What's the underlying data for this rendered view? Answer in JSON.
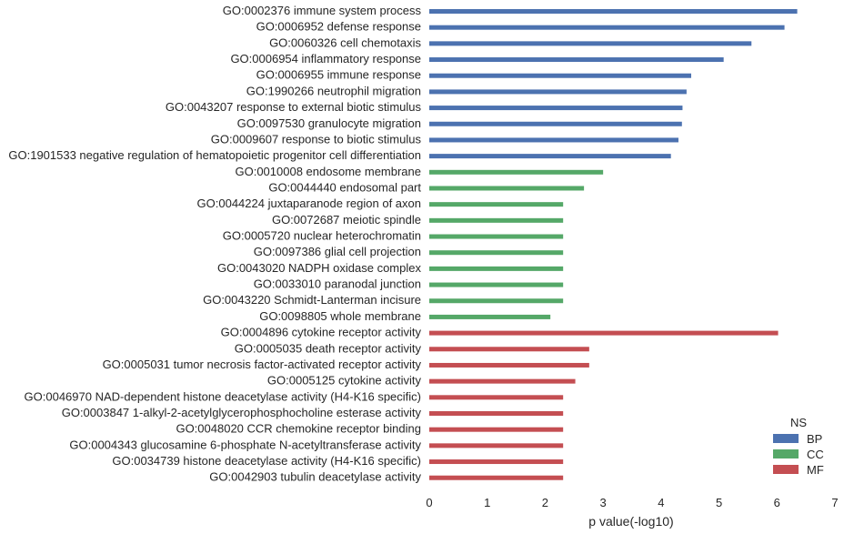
{
  "chart_data": {
    "type": "bar",
    "orientation": "horizontal",
    "xlabel": "p value(-log10)",
    "xlim": [
      0,
      7
    ],
    "xticks": [
      "0",
      "1",
      "2",
      "3",
      "4",
      "5",
      "6",
      "7"
    ],
    "legend": {
      "title": "NS",
      "placement": "bottom-right",
      "entries": [
        {
          "label": "BP",
          "color": "#4c72b0"
        },
        {
          "label": "CC",
          "color": "#55a868"
        },
        {
          "label": "MF",
          "color": "#c44e52"
        }
      ]
    },
    "bars": [
      {
        "label": "GO:0002376 immune system process",
        "value": 6.35,
        "ns": "BP"
      },
      {
        "label": "GO:0006952 defense response",
        "value": 6.13,
        "ns": "BP"
      },
      {
        "label": "GO:0060326 cell chemotaxis",
        "value": 5.56,
        "ns": "BP"
      },
      {
        "label": "GO:0006954 inflammatory response",
        "value": 5.08,
        "ns": "BP"
      },
      {
        "label": "GO:0006955 immune response",
        "value": 4.52,
        "ns": "BP"
      },
      {
        "label": "GO:1990266 neutrophil migration",
        "value": 4.44,
        "ns": "BP"
      },
      {
        "label": "GO:0043207 response to external biotic stimulus",
        "value": 4.37,
        "ns": "BP"
      },
      {
        "label": "GO:0097530 granulocyte migration",
        "value": 4.36,
        "ns": "BP"
      },
      {
        "label": "GO:0009607 response to biotic stimulus",
        "value": 4.3,
        "ns": "BP"
      },
      {
        "label": "GO:1901533 negative regulation of hematopoietic progenitor cell differentiation",
        "value": 4.17,
        "ns": "BP"
      },
      {
        "label": "GO:0010008 endosome membrane",
        "value": 3.0,
        "ns": "CC"
      },
      {
        "label": "GO:0044440 endosomal part",
        "value": 2.67,
        "ns": "CC"
      },
      {
        "label": "GO:0044224 juxtaparanode region of axon",
        "value": 2.31,
        "ns": "CC"
      },
      {
        "label": "GO:0072687 meiotic spindle",
        "value": 2.31,
        "ns": "CC"
      },
      {
        "label": "GO:0005720 nuclear heterochromatin",
        "value": 2.31,
        "ns": "CC"
      },
      {
        "label": "GO:0097386 glial cell projection",
        "value": 2.31,
        "ns": "CC"
      },
      {
        "label": "GO:0043020 NADPH oxidase complex",
        "value": 2.31,
        "ns": "CC"
      },
      {
        "label": "GO:0033010 paranodal junction",
        "value": 2.31,
        "ns": "CC"
      },
      {
        "label": "GO:0043220 Schmidt-Lanterman incisure",
        "value": 2.31,
        "ns": "CC"
      },
      {
        "label": "GO:0098805 whole membrane",
        "value": 2.09,
        "ns": "CC"
      },
      {
        "label": "GO:0004896 cytokine receptor activity",
        "value": 6.02,
        "ns": "MF"
      },
      {
        "label": "GO:0005035 death receptor activity",
        "value": 2.76,
        "ns": "MF"
      },
      {
        "label": "GO:0005031 tumor necrosis factor-activated receptor activity",
        "value": 2.76,
        "ns": "MF"
      },
      {
        "label": "GO:0005125 cytokine activity",
        "value": 2.52,
        "ns": "MF"
      },
      {
        "label": "GO:0046970 NAD-dependent histone deacetylase activity (H4-K16 specific)",
        "value": 2.31,
        "ns": "MF"
      },
      {
        "label": "GO:0003847 1-alkyl-2-acetylglycerophosphocholine esterase activity",
        "value": 2.31,
        "ns": "MF"
      },
      {
        "label": "GO:0048020 CCR chemokine receptor binding",
        "value": 2.31,
        "ns": "MF"
      },
      {
        "label": "GO:0004343 glucosamine 6-phosphate N-acetyltransferase activity",
        "value": 2.31,
        "ns": "MF"
      },
      {
        "label": "GO:0034739 histone deacetylase activity (H4-K16 specific)",
        "value": 2.31,
        "ns": "MF"
      },
      {
        "label": "GO:0042903 tubulin deacetylase activity",
        "value": 2.31,
        "ns": "MF"
      }
    ]
  }
}
